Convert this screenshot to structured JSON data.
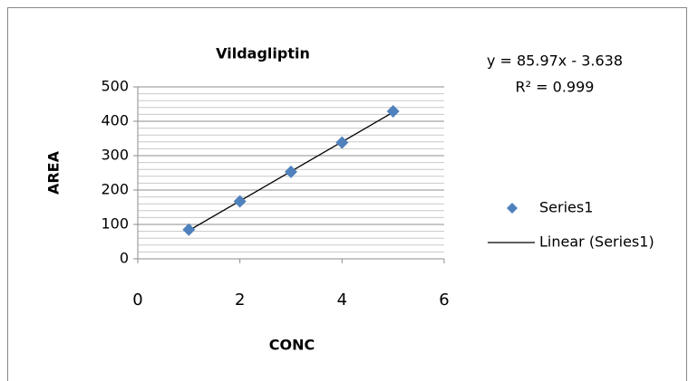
{
  "chart_data": {
    "type": "scatter",
    "title": "Vildagliptin",
    "x_label": "CONC",
    "y_label": "AREA",
    "series": [
      {
        "name": "Series1",
        "color": "#4f81bd",
        "x": [
          1,
          2,
          3,
          4,
          5
        ],
        "values": [
          85,
          167,
          253,
          338,
          429
        ]
      }
    ],
    "trendline": {
      "name": "Linear (Series1)",
      "color": "#000000",
      "slope": 85.97,
      "intercept": -3.638,
      "equation": "y = 85.97x - 3.638",
      "r_squared": "R² = 0.999"
    },
    "xlim": [
      0,
      6
    ],
    "xticks": [
      0,
      2,
      4,
      6
    ],
    "ylim": [
      0,
      500
    ],
    "yticks": [
      0,
      100,
      200,
      300,
      400,
      500
    ],
    "grid": true,
    "y_minor_grid_step": 20,
    "legend": "right"
  }
}
